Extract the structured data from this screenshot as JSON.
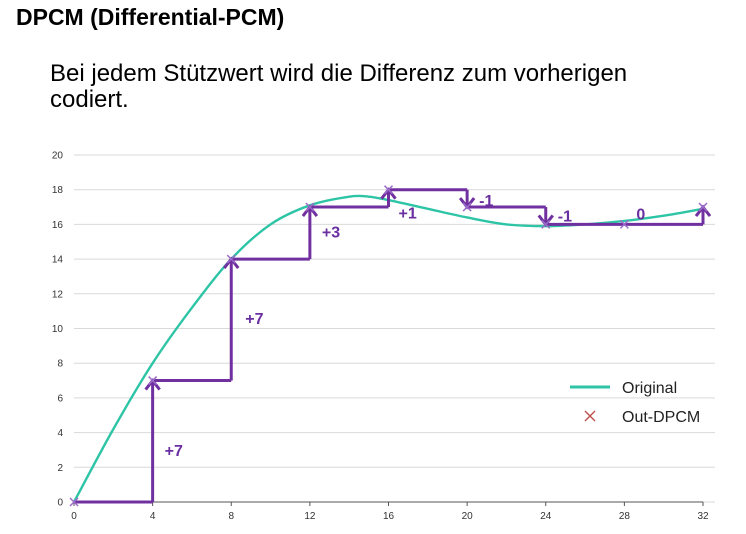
{
  "page": {
    "title": "DPCM (Differential-PCM)",
    "subtitle": "Bei jedem Stützwert wird die Differenz zum vorherigen codiert."
  },
  "chart_data": {
    "type": "line",
    "xlim": [
      0,
      32
    ],
    "ylim": [
      0,
      20
    ],
    "xticks": [
      0,
      4,
      8,
      12,
      16,
      20,
      24,
      28,
      32
    ],
    "yticks": [
      0,
      2,
      4,
      6,
      8,
      10,
      12,
      14,
      16,
      18,
      20
    ],
    "grid": "horizontal",
    "legend_position": "right",
    "colors": {
      "original": "#2ec4a6",
      "dpcm": "#7030a0"
    },
    "series": [
      {
        "name": "Original",
        "x": [
          0,
          2,
          4,
          6,
          8,
          10,
          12,
          14,
          15,
          16,
          18,
          20,
          22,
          24,
          26,
          28,
          30,
          32
        ],
        "y": [
          0,
          4.2,
          8.0,
          11.2,
          14.0,
          16.0,
          17.1,
          17.6,
          17.6,
          17.4,
          16.9,
          16.4,
          16.0,
          15.9,
          16.0,
          16.2,
          16.5,
          16.9
        ]
      },
      {
        "name": "Out-DPCM",
        "x": [
          0,
          4,
          8,
          12,
          16,
          20,
          24,
          28,
          32
        ],
        "y": [
          0,
          7,
          14,
          17,
          18,
          17,
          16,
          16,
          17
        ]
      }
    ],
    "annotations": [
      {
        "text": "+7",
        "x": 4,
        "y": 3
      },
      {
        "text": "+7",
        "x": 8,
        "y": 10.6
      },
      {
        "text": "+3",
        "x": 12,
        "y": 15.6
      },
      {
        "text": "+1",
        "x": 16,
        "y": 16.7
      },
      {
        "text": "-1",
        "x": 20,
        "y": 17.4
      },
      {
        "text": "-1",
        "x": 24,
        "y": 16.5
      },
      {
        "text": "0",
        "x": 28,
        "y": 16.5
      }
    ]
  }
}
